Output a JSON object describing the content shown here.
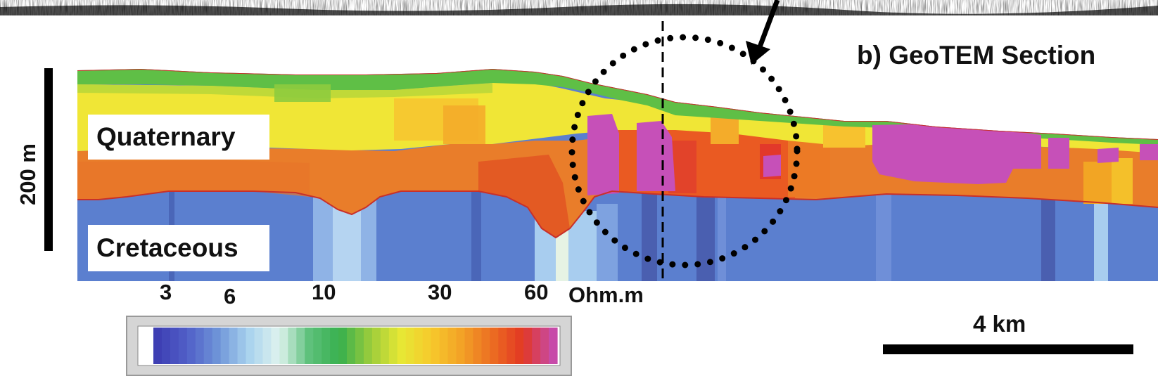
{
  "title": "b) GeoTEM Section",
  "units": {
    "upper": "Quaternary",
    "lower": "Cretaceous"
  },
  "vertical_scale": "200 m",
  "horizontal_scale": "4 km",
  "colorbar": {
    "ticks": [
      "3",
      "6",
      "10",
      "30",
      "60"
    ],
    "unit": "Ohm.m",
    "colors": [
      "#3e3fb3",
      "#5160c8",
      "#6f95d8",
      "#a9d3ee",
      "#dff3ee",
      "#5cc07a",
      "#37b04d",
      "#9ccc3c",
      "#e7e834",
      "#f6c92c",
      "#f3a126",
      "#ec6d22",
      "#e23823",
      "#c74ba9"
    ]
  },
  "colors": {
    "conductive_band": "#e97d2a",
    "resistive_basement": "#5b7fcf",
    "anomaly": "#c650b8",
    "surface_band": "#5fbf46",
    "upper_band": "#f0e636"
  }
}
